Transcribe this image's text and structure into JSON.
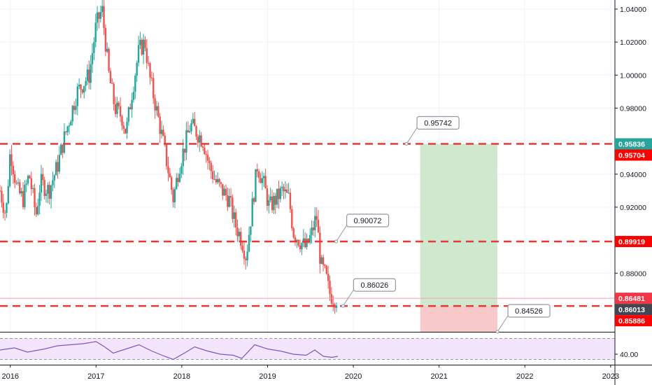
{
  "chart_data": {
    "type": "candlestick",
    "x_range": [
      2015.88,
      2023.05
    ],
    "y_range": [
      0.8445,
      1.0455
    ],
    "time_ticks": [
      "2016",
      "2017",
      "2018",
      "2019",
      "2020",
      "2021",
      "2022",
      "2023"
    ],
    "price_ticks": [
      "1.04000",
      "1.02000",
      "1.00000",
      "0.98000",
      "0.96000",
      "0.94000",
      "0.92000",
      "0.90000",
      "0.88000"
    ],
    "price_tick_values": [
      1.04,
      1.02,
      1.0,
      0.98,
      0.96,
      0.94,
      0.92,
      0.9,
      0.88
    ],
    "price_path": [
      [
        2015.88,
        0.93
      ],
      [
        2015.95,
        0.915
      ],
      [
        2016.0,
        0.955
      ],
      [
        2016.08,
        0.93
      ],
      [
        2016.15,
        0.925
      ],
      [
        2016.22,
        0.94
      ],
      [
        2016.3,
        0.915
      ],
      [
        2016.35,
        0.935
      ],
      [
        2016.45,
        0.93
      ],
      [
        2016.55,
        0.945
      ],
      [
        2016.62,
        0.96
      ],
      [
        2016.7,
        0.975
      ],
      [
        2016.78,
        0.99
      ],
      [
        2016.85,
        0.995
      ],
      [
        2016.92,
        1.0
      ],
      [
        2017.0,
        1.03
      ],
      [
        2017.07,
        1.04
      ],
      [
        2017.15,
        1.0
      ],
      [
        2017.22,
        0.98
      ],
      [
        2017.3,
        0.975
      ],
      [
        2017.35,
        0.965
      ],
      [
        2017.42,
        0.99
      ],
      [
        2017.5,
        1.015
      ],
      [
        2017.57,
        1.02
      ],
      [
        2017.62,
        1.0
      ],
      [
        2017.7,
        0.98
      ],
      [
        2017.78,
        0.96
      ],
      [
        2017.85,
        0.94
      ],
      [
        2017.9,
        0.925
      ],
      [
        2017.97,
        0.945
      ],
      [
        2018.05,
        0.96
      ],
      [
        2018.1,
        0.97
      ],
      [
        2018.18,
        0.965
      ],
      [
        2018.25,
        0.96
      ],
      [
        2018.32,
        0.945
      ],
      [
        2018.4,
        0.935
      ],
      [
        2018.47,
        0.93
      ],
      [
        2018.55,
        0.925
      ],
      [
        2018.62,
        0.91
      ],
      [
        2018.7,
        0.9
      ],
      [
        2018.75,
        0.89
      ],
      [
        2018.82,
        0.92
      ],
      [
        2018.88,
        0.945
      ],
      [
        2018.95,
        0.935
      ],
      [
        2019.02,
        0.92
      ],
      [
        2019.1,
        0.925
      ],
      [
        2019.17,
        0.93
      ],
      [
        2019.25,
        0.925
      ],
      [
        2019.3,
        0.905
      ],
      [
        2019.37,
        0.9
      ],
      [
        2019.45,
        0.895
      ],
      [
        2019.52,
        0.905
      ],
      [
        2019.57,
        0.915
      ],
      [
        2019.62,
        0.885
      ],
      [
        2019.68,
        0.878
      ],
      [
        2019.72,
        0.868
      ],
      [
        2019.77,
        0.865
      ],
      [
        2019.82,
        0.865
      ]
    ],
    "horizontal_levels": [
      0.95836,
      0.89919,
      0.86013
    ],
    "current_price_line": 0.86481,
    "callouts": [
      {
        "label": "0.95742",
        "value": 0.95742,
        "anchor": [
          2020.62,
          0.95836
        ]
      },
      {
        "label": "0.90072",
        "value": 0.90072,
        "anchor": [
          2019.8,
          0.89919
        ]
      },
      {
        "label": "0.86026",
        "value": 0.86026,
        "anchor": [
          2019.88,
          0.86013
        ]
      },
      {
        "label": "0.84526",
        "value": 0.84526,
        "anchor": [
          2021.68,
          0.8445
        ]
      }
    ],
    "position": {
      "type": "long",
      "x_start": 2020.78,
      "x_end": 2021.68,
      "entry": 0.86013,
      "target": 0.95836,
      "stop": 0.8445
    },
    "price_badges": [
      {
        "label": "0.95836",
        "value": 0.95836,
        "color": "#26a69a"
      },
      {
        "label": "0.95704",
        "value": 0.95704,
        "color": "#ff0000"
      },
      {
        "label": "0.89919",
        "value": 0.89919,
        "color": "#ff0000"
      },
      {
        "label": "0.86481",
        "value": 0.86481,
        "color": "#f23645"
      },
      {
        "label": "0.86013",
        "value": 0.86013,
        "color": "#434651"
      },
      {
        "label": "0.85886",
        "value": 0.85886,
        "color": "#ff0000"
      }
    ],
    "rsi": {
      "label": "40.00",
      "level": 40,
      "range": [
        20,
        80
      ],
      "band": [
        30,
        70
      ],
      "values": [
        [
          2015.88,
          48
        ],
        [
          2016.05,
          52
        ],
        [
          2016.2,
          44
        ],
        [
          2016.4,
          50
        ],
        [
          2016.55,
          56
        ],
        [
          2016.7,
          58
        ],
        [
          2016.85,
          60
        ],
        [
          2017.0,
          64
        ],
        [
          2017.1,
          54
        ],
        [
          2017.2,
          42
        ],
        [
          2017.35,
          50
        ],
        [
          2017.5,
          58
        ],
        [
          2017.65,
          46
        ],
        [
          2017.8,
          36
        ],
        [
          2017.9,
          30
        ],
        [
          2018.05,
          44
        ],
        [
          2018.15,
          54
        ],
        [
          2018.3,
          46
        ],
        [
          2018.45,
          40
        ],
        [
          2018.6,
          38
        ],
        [
          2018.7,
          32
        ],
        [
          2018.85,
          58
        ],
        [
          2019.0,
          50
        ],
        [
          2019.15,
          46
        ],
        [
          2019.3,
          40
        ],
        [
          2019.45,
          38
        ],
        [
          2019.55,
          48
        ],
        [
          2019.65,
          36
        ],
        [
          2019.75,
          34
        ],
        [
          2019.82,
          36
        ]
      ]
    }
  },
  "colors": {
    "up": "#26a69a",
    "down": "#ef5350",
    "level_line": "#e53935",
    "current_line": "#f6a5a5",
    "profit_zone": "#cfe9cf",
    "loss_zone": "#f8c9c9",
    "rsi_line": "#7e57c2",
    "rsi_fill": "#f3e5fb"
  }
}
